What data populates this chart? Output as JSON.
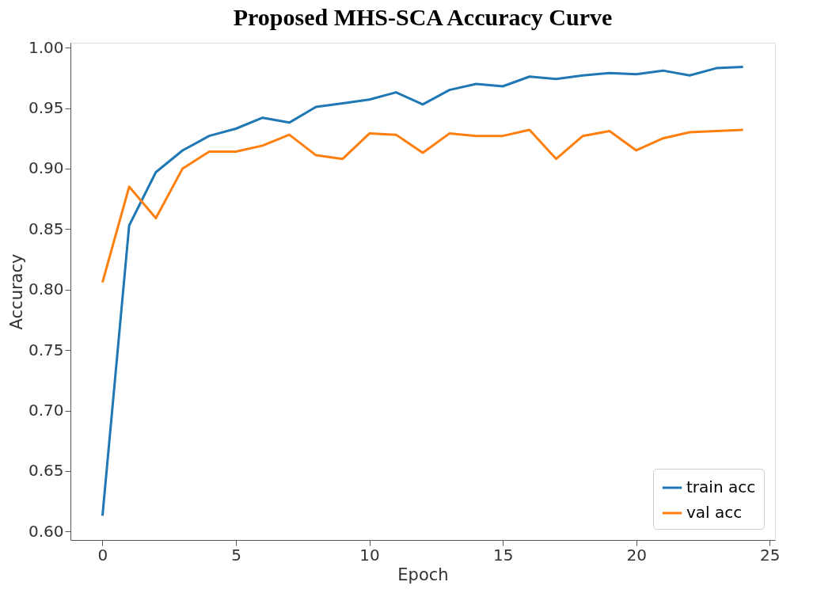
{
  "chart_data": {
    "type": "line",
    "title": "Proposed MHS-SCA Accuracy Curve",
    "xlabel": "Epoch",
    "ylabel": "Accuracy",
    "x": [
      0,
      1,
      2,
      3,
      4,
      5,
      6,
      7,
      8,
      9,
      10,
      11,
      12,
      13,
      14,
      15,
      16,
      17,
      18,
      19,
      20,
      21,
      22,
      23,
      24
    ],
    "series": [
      {
        "name": "train acc",
        "color": "#1f77b4",
        "values": [
          0.613,
          0.853,
          0.897,
          0.915,
          0.927,
          0.933,
          0.942,
          0.938,
          0.951,
          0.954,
          0.957,
          0.963,
          0.953,
          0.965,
          0.97,
          0.968,
          0.976,
          0.974,
          0.977,
          0.979,
          0.978,
          0.981,
          0.977,
          0.983,
          0.984
        ]
      },
      {
        "name": "val acc",
        "color": "#ff7f0e",
        "values": [
          0.806,
          0.885,
          0.859,
          0.9,
          0.914,
          0.914,
          0.919,
          0.928,
          0.911,
          0.908,
          0.929,
          0.928,
          0.913,
          0.929,
          0.927,
          0.927,
          0.932,
          0.908,
          0.927,
          0.931,
          0.915,
          0.925,
          0.93,
          0.931,
          0.932
        ]
      }
    ],
    "xlim": [
      -1.2,
      25.2
    ],
    "xticks": [
      0,
      5,
      10,
      15,
      20,
      25
    ],
    "ylim": [
      0.593,
      1.004
    ],
    "yticks": [
      {
        "value": 0.6,
        "label": "0.60"
      },
      {
        "value": 0.65,
        "label": "0.65"
      },
      {
        "value": 0.7,
        "label": "0.70"
      },
      {
        "value": 0.75,
        "label": "0.75"
      },
      {
        "value": 0.8,
        "label": "0.80"
      },
      {
        "value": 0.85,
        "label": "0.85"
      },
      {
        "value": 0.9,
        "label": "0.90"
      },
      {
        "value": 0.95,
        "label": "0.95"
      },
      {
        "value": 1.0,
        "label": "1.00"
      }
    ],
    "grid": false,
    "legend": "bottom right",
    "marker": "none",
    "line_style": "solid"
  }
}
